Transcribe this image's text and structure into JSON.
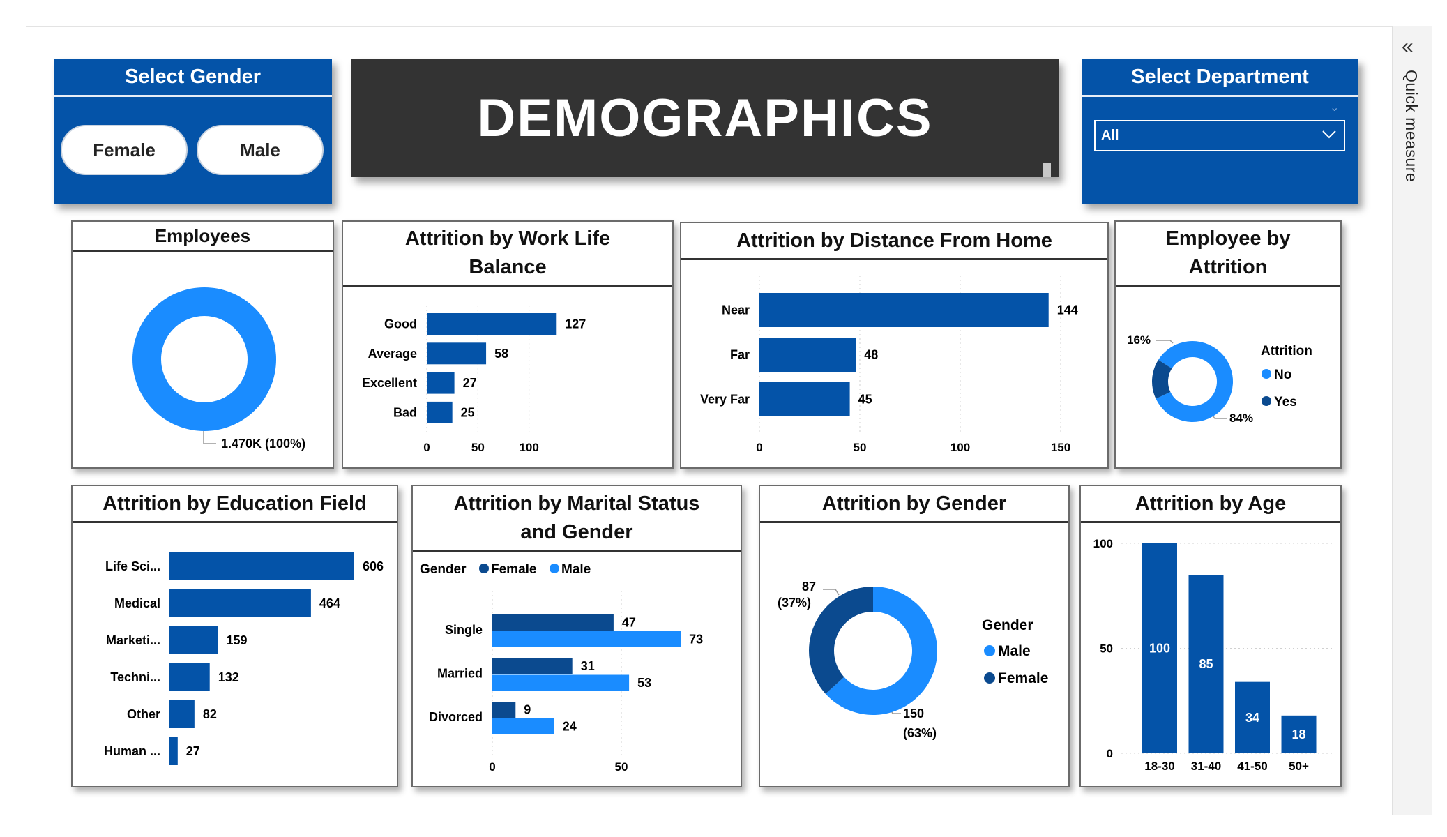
{
  "colors": {
    "dark_blue": "#0453a8",
    "light_blue": "#1a8cff",
    "navy": "#0b4a8f",
    "banner": "#333333"
  },
  "banner": {
    "title": "DEMOGRAPHICS"
  },
  "gender_slicer": {
    "title": "Select Gender",
    "options": [
      "Female",
      "Male"
    ]
  },
  "department_slicer": {
    "title": "Select Department",
    "selected": "All"
  },
  "quick_measure": {
    "label": "Quick measure",
    "icon": "double-chevron-left-icon"
  },
  "employees_card": {
    "title": "Employees",
    "data_label": "1.470K (100%)"
  },
  "work_life_card": {
    "title_line1": "Attrition by Work Life",
    "title_line2": "Balance"
  },
  "distance_card": {
    "title": "Attrition by Distance From Home"
  },
  "emp_attrition_card": {
    "title_line1": "Employee by",
    "title_line2": "Attrition",
    "legend_title": "Attrition",
    "legend_items": [
      "No",
      "Yes"
    ],
    "label_yes": "16%",
    "label_no": "84%"
  },
  "education_card": {
    "title": "Attrition by Education Field"
  },
  "marital_card": {
    "title_line1": "Attrition by Marital Status",
    "title_line2": "and Gender",
    "legend_title": "Gender",
    "legend_items": [
      "Female",
      "Male"
    ]
  },
  "gender_card": {
    "title": "Attrition by Gender",
    "legend_title": "Gender",
    "legend_items": [
      "Male",
      "Female"
    ],
    "label_female_count": "87",
    "label_female_pct": "(37%)",
    "label_male_count": "150",
    "label_male_pct": "(63%)"
  },
  "age_card": {
    "title": "Attrition by Age"
  },
  "chart_data": [
    {
      "id": "employees",
      "type": "pie",
      "categories": [
        "Employees"
      ],
      "values": [
        1470
      ],
      "labels": [
        "1.470K (100%)"
      ]
    },
    {
      "id": "work_life",
      "type": "bar",
      "categories": [
        "Good",
        "Average",
        "Excellent",
        "Bad"
      ],
      "values": [
        127,
        58,
        27,
        25
      ],
      "xticks": [
        "0",
        "50",
        "100"
      ],
      "xlim": [
        0,
        150
      ]
    },
    {
      "id": "distance",
      "type": "bar",
      "categories": [
        "Near",
        "Far",
        "Very Far"
      ],
      "values": [
        144,
        48,
        45
      ],
      "xticks": [
        "0",
        "50",
        "100",
        "150"
      ],
      "xlim": [
        0,
        150
      ]
    },
    {
      "id": "employee_attrition",
      "type": "pie",
      "categories": [
        "No",
        "Yes"
      ],
      "values": [
        84,
        16
      ]
    },
    {
      "id": "education",
      "type": "bar",
      "categories": [
        "Life Sci...",
        "Medical",
        "Marketi...",
        "Techni...",
        "Other",
        "Human ..."
      ],
      "values": [
        606,
        464,
        159,
        132,
        82,
        27
      ]
    },
    {
      "id": "marital_gender",
      "type": "bar",
      "categories": [
        "Single",
        "Married",
        "Divorced"
      ],
      "series": [
        {
          "name": "Female",
          "values": [
            47,
            31,
            9
          ]
        },
        {
          "name": "Male",
          "values": [
            73,
            53,
            24
          ]
        }
      ],
      "xticks": [
        "0",
        "50"
      ],
      "xlim": [
        0,
        80
      ]
    },
    {
      "id": "gender",
      "type": "pie",
      "categories": [
        "Male",
        "Female"
      ],
      "values": [
        150,
        87
      ]
    },
    {
      "id": "age",
      "type": "bar",
      "categories": [
        "18-30",
        "31-40",
        "41-50",
        "50+"
      ],
      "values": [
        100,
        85,
        34,
        18
      ],
      "yticks": [
        "0",
        "50",
        "100"
      ],
      "ylim": [
        0,
        100
      ]
    }
  ]
}
